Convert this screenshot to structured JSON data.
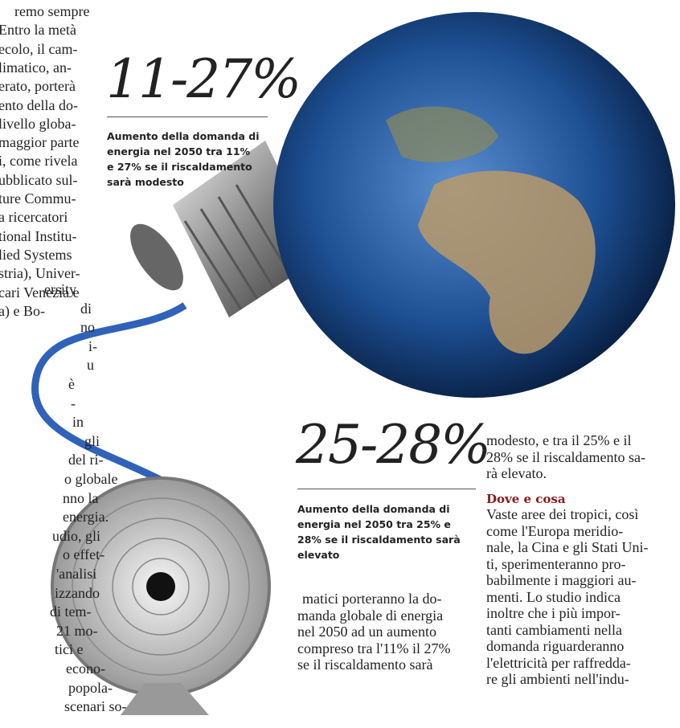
{
  "left_column": {
    "lines": [
      "remo sempre",
      "Entro la metà",
      "ecolo, il cam-",
      "limatico, an-",
      "erato, porterà",
      "ento della do-",
      "livello globa-",
      "maggior parte",
      "i, come rivela",
      "ubblicato sul-",
      "ture Commu-",
      "a ricercatori",
      "tional Institu-",
      "lied Systems",
      "stria), Univer-",
      "cari Venezia e",
      "a) e Bo-",
      "ersity",
      "di",
      "no",
      "i-",
      "u",
      "è",
      "-",
      "in",
      "gli",
      "del ri-",
      "o globale",
      "nno la",
      "energia.",
      "udio, gli",
      "o effet-",
      "'analisi",
      "izzando",
      "di tem-",
      "21 mo-",
      "tici e",
      "econo-",
      "popola-",
      "scenari so-"
    ]
  },
  "figure_1": {
    "number": "11-27%",
    "caption": "Aumento della domanda di energia nel 2050 tra 11% e 27% se il riscaldamento sarà modesto"
  },
  "figure_2": {
    "number": "25-28%",
    "caption": "Aumento della domanda di energia nel 2050 tra 25% e 28% se il riscaldamento sarà elevato"
  },
  "middle_column": {
    "lines": [
      "matici porteranno la do-",
      "manda globale di energia",
      "nel 2050 ad un aumento",
      "compreso tra l'11% il 27%",
      "se il riscaldamento sarà"
    ]
  },
  "right_column": {
    "lines": [
      "modesto, e tra il 25% e il",
      "28% se il riscaldamento sa-",
      "rà elevato."
    ],
    "heading": "Dove e cosa",
    "body_lines": [
      "Vaste aree dei tropici, così",
      "come l'Europa meridio-",
      "nale, la Cina e gli Stati Uni-",
      "ti, sperimenteranno pro-",
      "babilmente i maggiori au-",
      "menti. Lo studio indica",
      "inoltre che i più impor-",
      "tanti cambiamenti nella",
      "domanda riguarderanno",
      "l'elettricità per raffredda-",
      "re gli ambienti nell'indu-"
    ]
  }
}
